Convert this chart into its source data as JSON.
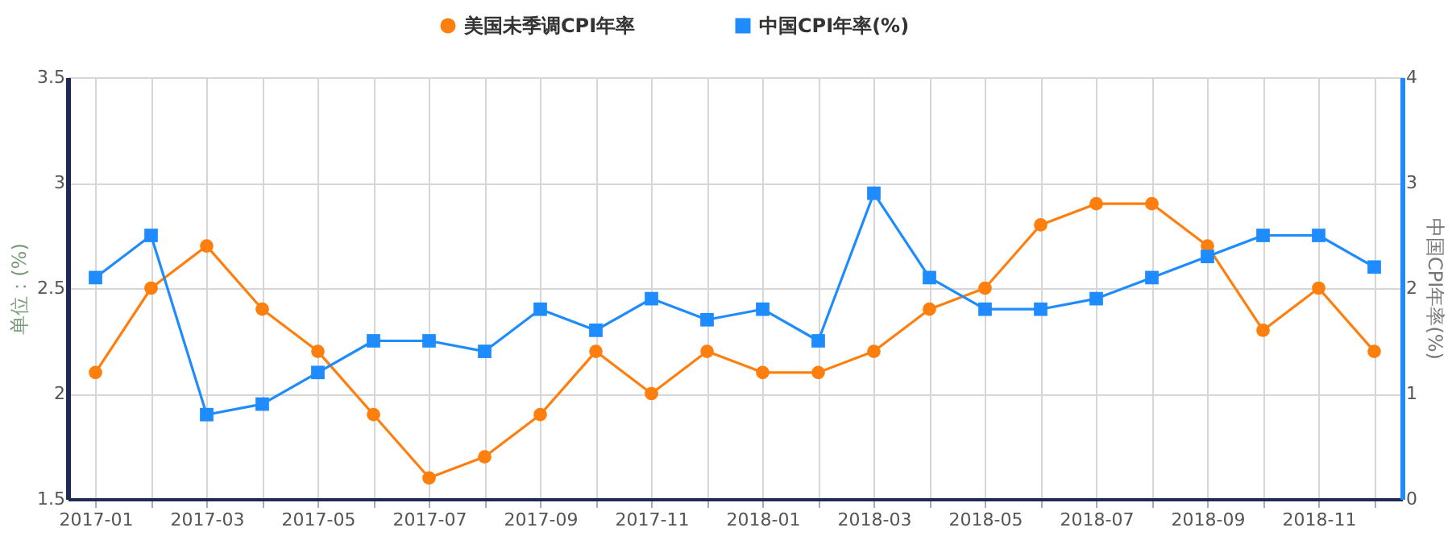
{
  "chart_data": {
    "type": "line",
    "categories": [
      "2017-01",
      null,
      "2017-03",
      null,
      "2017-05",
      null,
      "2017-07",
      null,
      "2017-09",
      null,
      "2017-11",
      null,
      "2018-01",
      null,
      "2018-03",
      null,
      "2018-05",
      null,
      "2018-07",
      null,
      "2018-09",
      null,
      "2018-11",
      null
    ],
    "series": [
      {
        "name": "美国未季调CPI年率",
        "color": "#ff7f0e",
        "marker": "circle",
        "values": [
          2.1,
          2.5,
          2.7,
          2.4,
          2.2,
          1.9,
          1.6,
          1.7,
          1.9,
          2.2,
          2.0,
          2.2,
          2.1,
          2.1,
          2.2,
          2.4,
          2.5,
          2.8,
          2.9,
          2.9,
          2.7,
          2.3,
          2.5,
          2.2
        ]
      },
      {
        "name": "中国CPI年率(%)",
        "color": "#1e8cff",
        "marker": "square",
        "axis": "y2",
        "values": [
          2.1,
          2.5,
          0.8,
          0.9,
          1.2,
          1.5,
          1.5,
          1.4,
          1.8,
          1.6,
          1.9,
          1.7,
          1.8,
          1.5,
          2.9,
          2.1,
          1.8,
          1.8,
          1.9,
          2.1,
          2.3,
          2.5,
          2.5,
          2.2
        ]
      }
    ],
    "ylabel": "单位：(%)",
    "y2label": "中国CPI年率(%)",
    "ylim": [
      1.5,
      3.5
    ],
    "yticks": [
      1.5,
      2,
      2.5,
      3,
      3.5
    ],
    "y2lim": [
      0,
      4
    ],
    "y2ticks": [
      0,
      1,
      2,
      3,
      4
    ],
    "grid": true,
    "legend": "top",
    "line_style": "solid"
  }
}
